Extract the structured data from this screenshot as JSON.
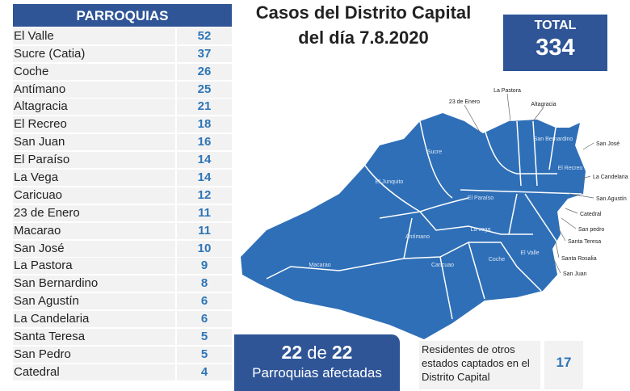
{
  "table": {
    "header": "PARROQUIAS",
    "rows": [
      {
        "name": "El Valle",
        "value": "52"
      },
      {
        "name": "Sucre (Catia)",
        "value": "37"
      },
      {
        "name": "Coche",
        "value": "26"
      },
      {
        "name": "Antímano",
        "value": "25"
      },
      {
        "name": "Altagracia",
        "value": "21"
      },
      {
        "name": "El Recreo",
        "value": "18"
      },
      {
        "name": "San Juan",
        "value": "16"
      },
      {
        "name": "El Paraíso",
        "value": "14"
      },
      {
        "name": "La Vega",
        "value": "14"
      },
      {
        "name": "Caricuao",
        "value": "12"
      },
      {
        "name": "23 de Enero",
        "value": "11"
      },
      {
        "name": "Macarao",
        "value": "11"
      },
      {
        "name": "San José",
        "value": "10"
      },
      {
        "name": "La Pastora",
        "value": "9"
      },
      {
        "name": "San Bernardino",
        "value": "8"
      },
      {
        "name": "San Agustín",
        "value": "6"
      },
      {
        "name": "La Candelaria",
        "value": "6"
      },
      {
        "name": "Santa Teresa",
        "value": "5"
      },
      {
        "name": "San Pedro",
        "value": "5"
      },
      {
        "name": "Catedral",
        "value": "4"
      }
    ]
  },
  "title": {
    "line1": "Casos del Distrito Capital",
    "line2": "del día 7.8.2020"
  },
  "total": {
    "label": "TOTAL",
    "value": "334"
  },
  "affected": {
    "count": "22",
    "of": "de",
    "total": "22",
    "label": "Parroquias afectadas"
  },
  "residents": {
    "label": "Residentes de otros estados captados en el Distrito Capital",
    "value": "17"
  },
  "map": {
    "color": "#2f6fb7",
    "inner_labels": [
      "Sucre",
      "El Junquito",
      "El Paraíso",
      "Antímano",
      "La vega",
      "Macarao",
      "Caricuao",
      "Coche",
      "El Valle",
      "San Bernardino",
      "El Recreo"
    ],
    "outer_labels": [
      "23 de Enero",
      "La Pastora",
      "Altagracia",
      "San José",
      "La Candelaria",
      "San Agustín",
      "Catedral",
      "San pedro",
      "Santa Teresa",
      "Santa Rosalia",
      "San Juan"
    ]
  }
}
